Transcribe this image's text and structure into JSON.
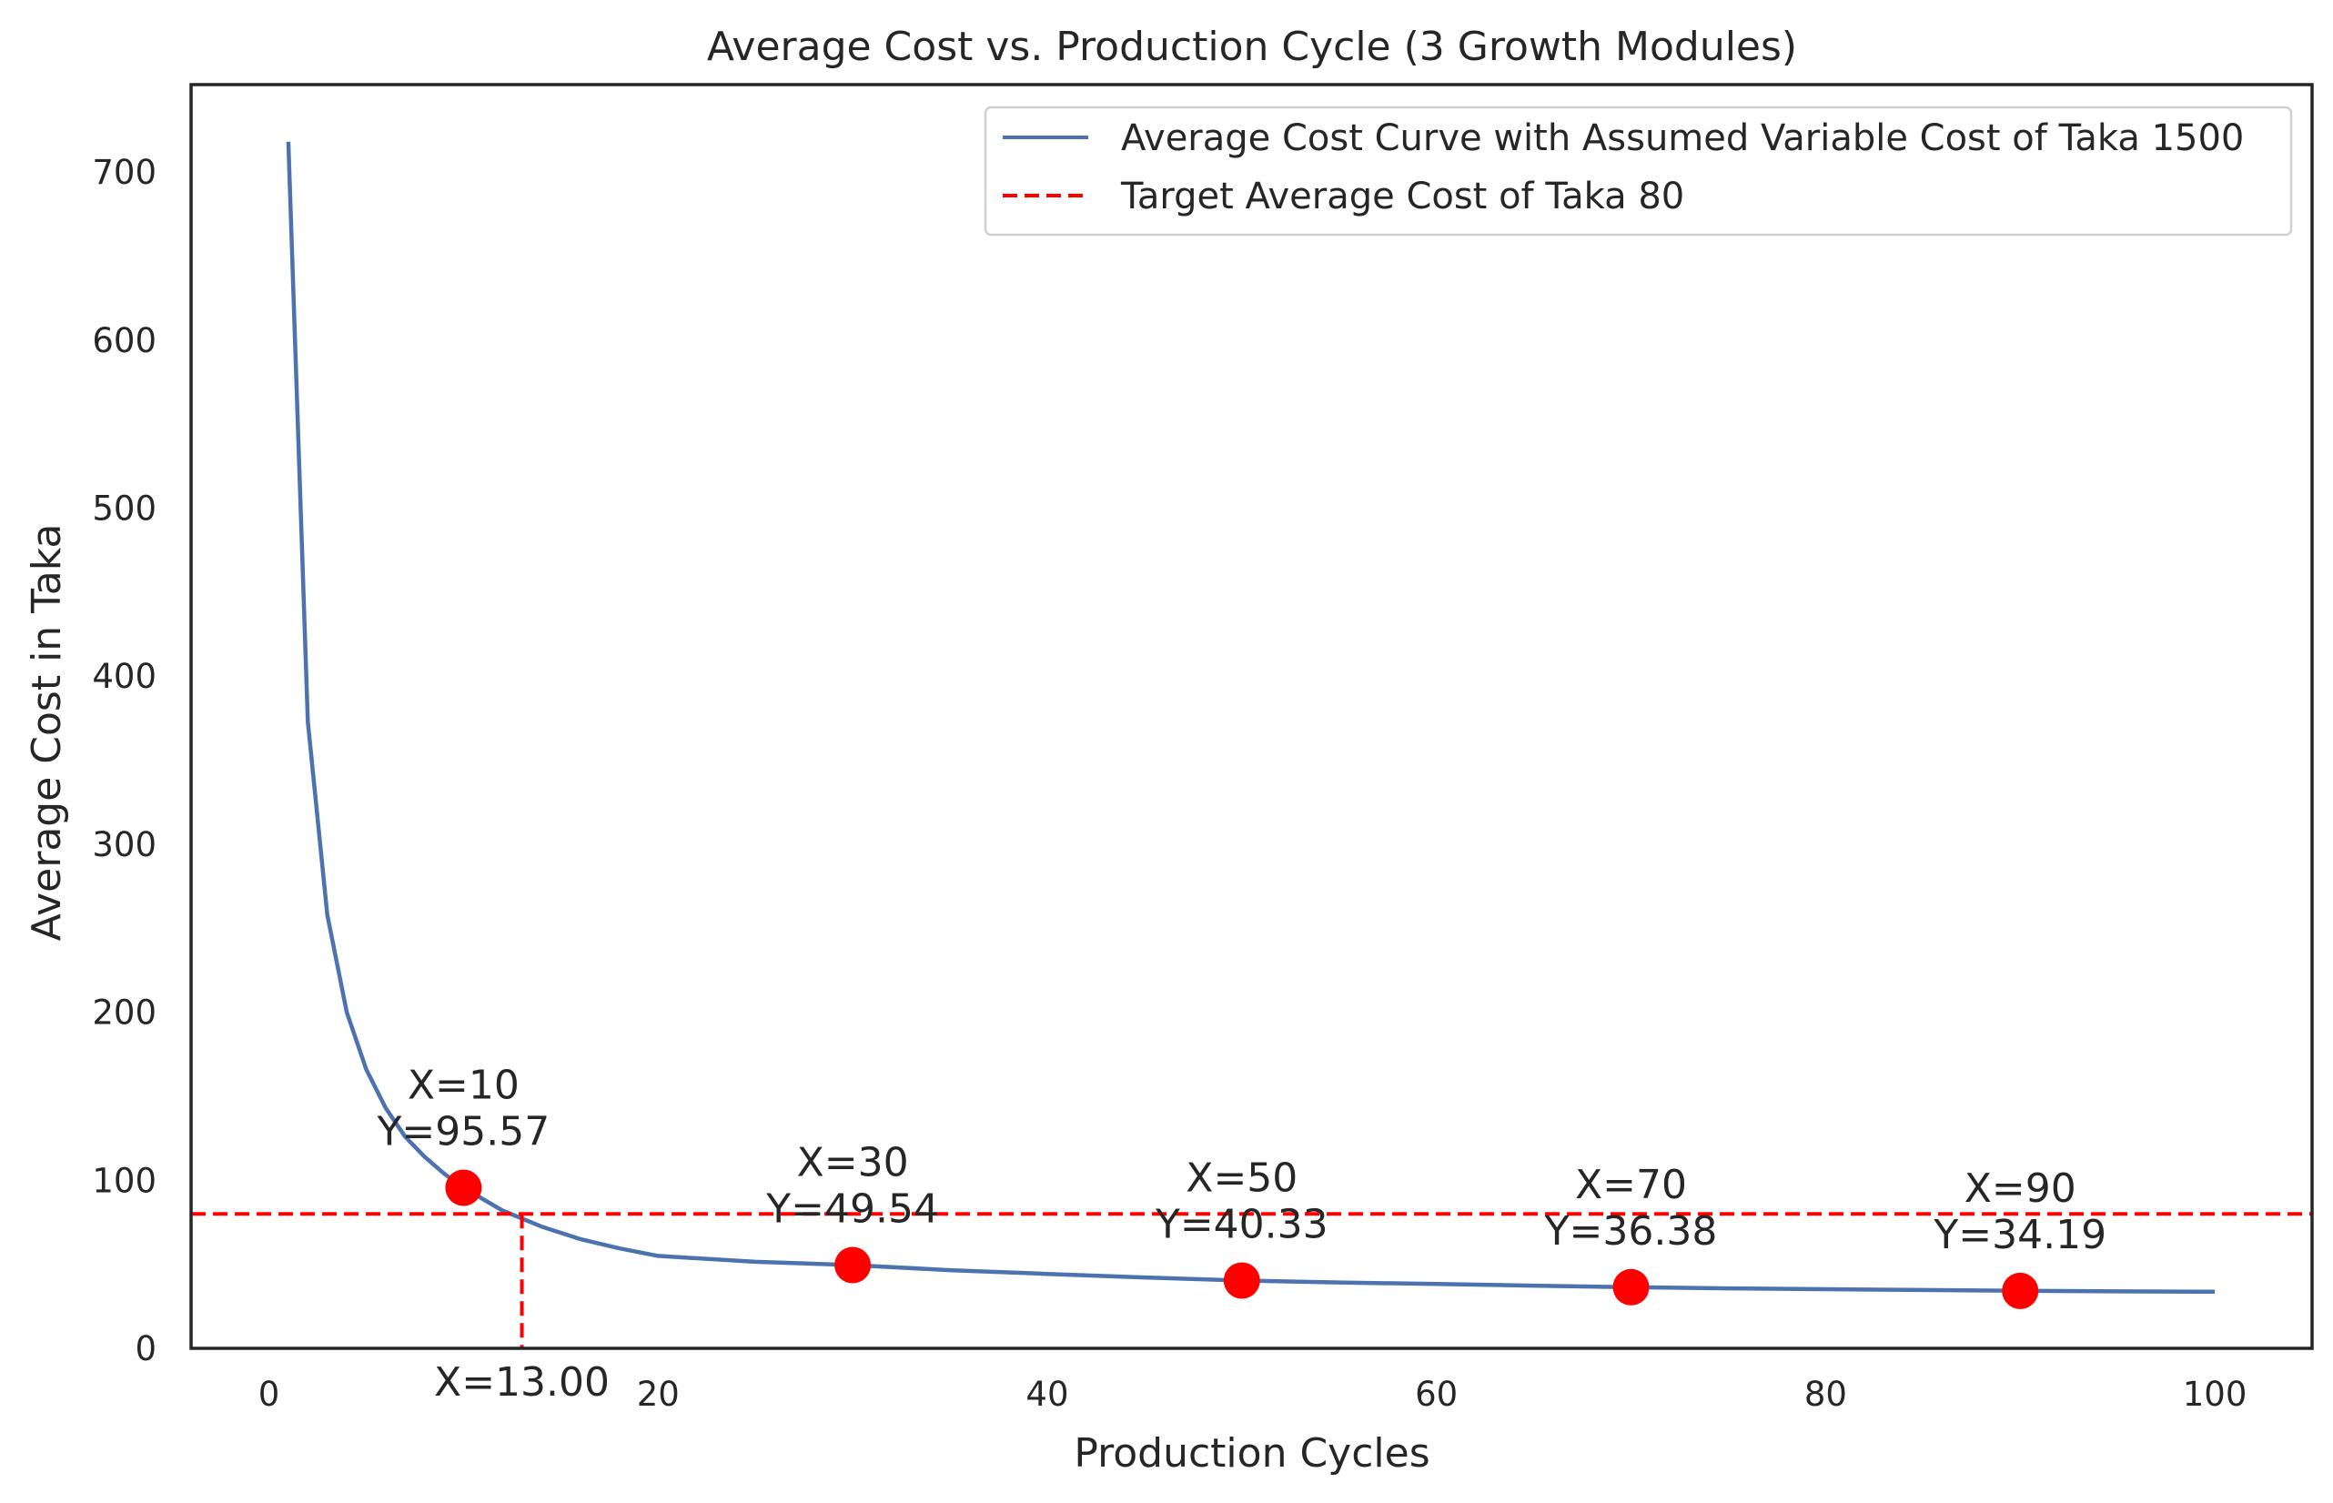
{
  "chart_data": {
    "type": "line",
    "title": "Average Cost vs. Production Cycle (3 Growth Modules)",
    "xlabel": "Production Cycles",
    "ylabel": "Average Cost in Taka",
    "xlim": [
      -4,
      105
    ],
    "ylim": [
      0,
      752
    ],
    "xticks": [
      0,
      20,
      40,
      60,
      80,
      100
    ],
    "yticks": [
      0,
      100,
      200,
      300,
      400,
      500,
      600,
      700
    ],
    "grid": false,
    "legend_position": "top-right",
    "curve": {
      "name": "Average Cost Curve with Assumed Variable Cost of Taka 1500",
      "color": "#4c72b0",
      "x": [
        1,
        2,
        3,
        4,
        5,
        6,
        7,
        8,
        9,
        10,
        12,
        14,
        16,
        18,
        20,
        25,
        30,
        35,
        40,
        45,
        50,
        55,
        60,
        65,
        70,
        75,
        80,
        85,
        90,
        95,
        100
      ],
      "y": [
        718,
        373,
        258,
        200,
        166,
        143,
        126,
        114,
        104,
        95.57,
        82,
        72.5,
        65,
        59.5,
        55,
        51.5,
        49.54,
        46.5,
        44.3,
        42.2,
        40.33,
        39.2,
        38.3,
        37.3,
        36.38,
        35.7,
        35.2,
        34.7,
        34.19,
        33.9,
        33.7
      ]
    },
    "target": {
      "name": "Target Average Cost of Taka 80",
      "value": 80,
      "color": "#ff0000",
      "intersect_x": 13,
      "intersect_label": "X=13.00"
    },
    "points": {
      "color": "#ff0000",
      "items": [
        {
          "x": 10,
          "y": 95.57,
          "label_x": "X=10",
          "label_y": "Y=95.57"
        },
        {
          "x": 30,
          "y": 49.54,
          "label_x": "X=30",
          "label_y": "Y=49.54"
        },
        {
          "x": 50,
          "y": 40.33,
          "label_x": "X=50",
          "label_y": "Y=40.33"
        },
        {
          "x": 70,
          "y": 36.38,
          "label_x": "X=70",
          "label_y": "Y=36.38"
        },
        {
          "x": 90,
          "y": 34.19,
          "label_x": "X=90",
          "label_y": "Y=34.19"
        }
      ]
    }
  }
}
